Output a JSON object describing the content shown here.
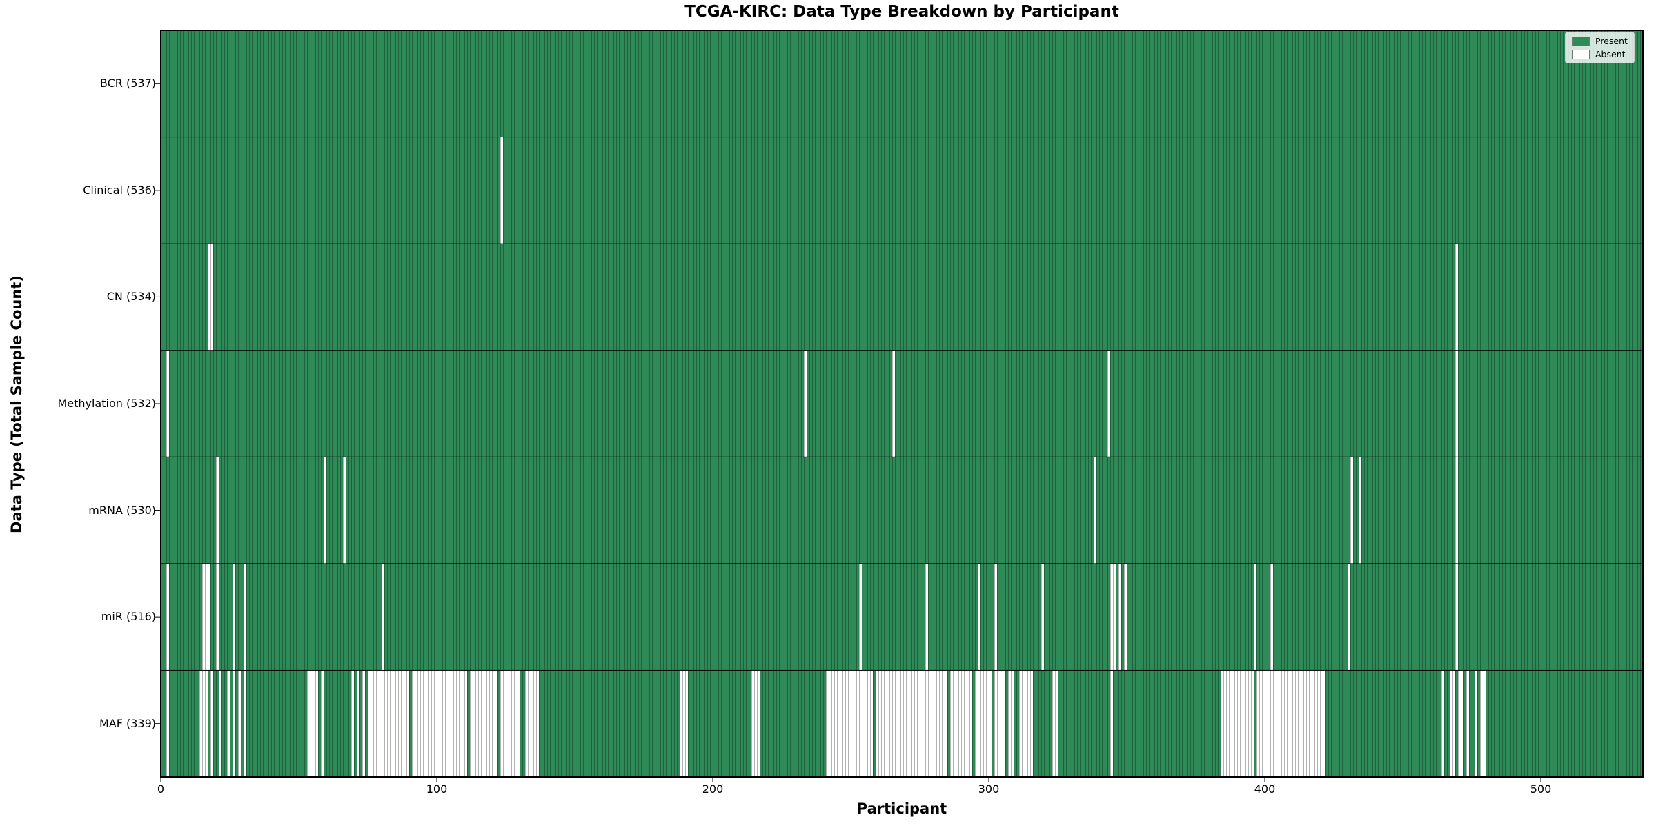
{
  "title": "TCGA-KIRC: Data Type Breakdown by Participant",
  "xlabel": "Participant",
  "ylabel": "Data Type (Total Sample Count)",
  "n_participants": 537,
  "x_ticks": [
    0,
    100,
    200,
    300,
    400,
    500
  ],
  "legend": {
    "present_label": "Present",
    "absent_label": "Absent"
  },
  "colors": {
    "present": "#2e8b57",
    "absent": "#ffffff",
    "cell_edge": "rgba(0,0,0,0.30)",
    "separator": "#000000",
    "axis": "#000000",
    "legend_bg": "rgba(255,255,255,0.8)",
    "legend_border": "#cccccc"
  },
  "chart_data": {
    "type": "heatmap",
    "title": "TCGA-KIRC: Data Type Breakdown by Participant",
    "xlabel": "Participant",
    "ylabel": "Data Type (Total Sample Count)",
    "x_range": [
      0,
      537
    ],
    "grid": false,
    "legend_position": "upper right",
    "legend_entries": [
      "Present",
      "Absent"
    ],
    "value_encoding": {
      "present": 1,
      "absent": 0
    },
    "rows": [
      {
        "name": "BCR",
        "label": "BCR (537)",
        "present_count": 537,
        "absent_count": 0,
        "absent_ranges": []
      },
      {
        "name": "Clinical",
        "label": "Clinical (536)",
        "present_count": 536,
        "absent_count": 1,
        "absent_ranges": [
          [
            123,
            123
          ]
        ]
      },
      {
        "name": "CN",
        "label": "CN (534)",
        "present_count": 534,
        "absent_count": 3,
        "absent_ranges": [
          [
            17,
            18
          ],
          [
            469,
            469
          ]
        ]
      },
      {
        "name": "Methylation",
        "label": "Methylation (532)",
        "present_count": 532,
        "absent_count": 5,
        "absent_ranges": [
          [
            2,
            2
          ],
          [
            233,
            233
          ],
          [
            265,
            265
          ],
          [
            343,
            343
          ],
          [
            469,
            469
          ]
        ]
      },
      {
        "name": "mRNA",
        "label": "mRNA (530)",
        "present_count": 530,
        "absent_count": 7,
        "absent_ranges": [
          [
            20,
            20
          ],
          [
            59,
            59
          ],
          [
            66,
            66
          ],
          [
            338,
            338
          ],
          [
            431,
            431
          ],
          [
            434,
            434
          ],
          [
            469,
            469
          ]
        ]
      },
      {
        "name": "miR",
        "label": "miR (516)",
        "present_count": 516,
        "absent_count": 21,
        "absent_ranges": [
          [
            2,
            2
          ],
          [
            15,
            17
          ],
          [
            20,
            20
          ],
          [
            26,
            26
          ],
          [
            30,
            30
          ],
          [
            80,
            80
          ],
          [
            253,
            253
          ],
          [
            277,
            277
          ],
          [
            296,
            296
          ],
          [
            302,
            302
          ],
          [
            319,
            319
          ],
          [
            344,
            345
          ],
          [
            347,
            347
          ],
          [
            349,
            349
          ],
          [
            396,
            396
          ],
          [
            402,
            402
          ],
          [
            430,
            430
          ],
          [
            469,
            469
          ]
        ]
      },
      {
        "name": "MAF",
        "label": "MAF (339)",
        "present_count": 339,
        "absent_count": 198,
        "absent_ranges": [
          [
            2,
            2
          ],
          [
            14,
            16
          ],
          [
            18,
            18
          ],
          [
            21,
            21
          ],
          [
            24,
            24
          ],
          [
            26,
            26
          ],
          [
            28,
            28
          ],
          [
            30,
            30
          ],
          [
            53,
            56
          ],
          [
            58,
            58
          ],
          [
            69,
            69
          ],
          [
            71,
            71
          ],
          [
            73,
            73
          ],
          [
            75,
            89
          ],
          [
            91,
            110
          ],
          [
            112,
            121
          ],
          [
            123,
            129
          ],
          [
            132,
            136
          ],
          [
            188,
            190
          ],
          [
            214,
            216
          ],
          [
            241,
            257
          ],
          [
            259,
            284
          ],
          [
            286,
            293
          ],
          [
            295,
            300
          ],
          [
            302,
            305
          ],
          [
            307,
            308
          ],
          [
            311,
            315
          ],
          [
            323,
            324
          ],
          [
            344,
            344
          ],
          [
            384,
            395
          ],
          [
            397,
            421
          ],
          [
            464,
            464
          ],
          [
            467,
            468
          ],
          [
            470,
            471
          ],
          [
            473,
            473
          ],
          [
            476,
            476
          ],
          [
            478,
            479
          ]
        ]
      }
    ]
  }
}
